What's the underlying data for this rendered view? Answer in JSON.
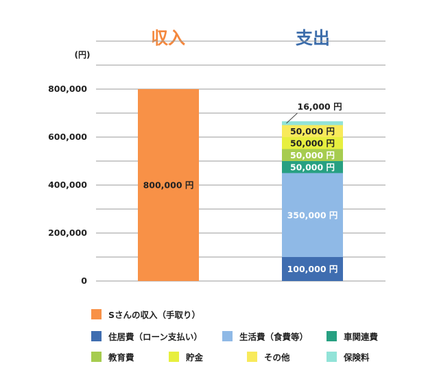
{
  "chart_data": {
    "type": "bar",
    "stacked": true,
    "unit_label": "(円)",
    "yticks": [
      0,
      200000,
      400000,
      600000,
      800000
    ],
    "ytick_labels": [
      "0",
      "200,000",
      "400,000",
      "600,000",
      "800,000"
    ],
    "ylim": [
      0,
      1000000
    ],
    "grid": true,
    "legend_position": "bottom",
    "categories": [
      "収入",
      "支出"
    ],
    "category_colors": [
      "#f4883e",
      "#3c6dab"
    ],
    "series": [
      {
        "name": "Sさんの収入（手取り）",
        "color": "#f89147",
        "values": [
          800000,
          0
        ],
        "label": "800,000 円",
        "label_color": "#222222"
      },
      {
        "name": "住居費（ローン支払い）",
        "color": "#3f6db0",
        "values": [
          0,
          100000
        ],
        "label": "100,000 円",
        "label_color": "#ffffff"
      },
      {
        "name": "生活費（食費等）",
        "color": "#8fb9e6",
        "values": [
          0,
          350000
        ],
        "label": "350,000 円",
        "label_color": "#ffffff"
      },
      {
        "name": "車関連費",
        "color": "#27a082",
        "values": [
          0,
          50000
        ],
        "label": "50,000 円",
        "label_color": "#ffffff"
      },
      {
        "name": "教育費",
        "color": "#a6cc4f",
        "values": [
          0,
          50000
        ],
        "label": "50,000 円",
        "label_color": "#ffffff"
      },
      {
        "name": "貯金",
        "color": "#e7ef3f",
        "values": [
          0,
          50000
        ],
        "label": "50,000 円",
        "label_color": "#222222"
      },
      {
        "name": "その他",
        "color": "#f8ea5b",
        "values": [
          0,
          50000
        ],
        "label": "50,000 円",
        "label_color": "#222222"
      },
      {
        "name": "保険料",
        "color": "#92e3d8",
        "values": [
          0,
          16000
        ],
        "label": "16,000 円",
        "label_color": "#222222"
      }
    ]
  }
}
